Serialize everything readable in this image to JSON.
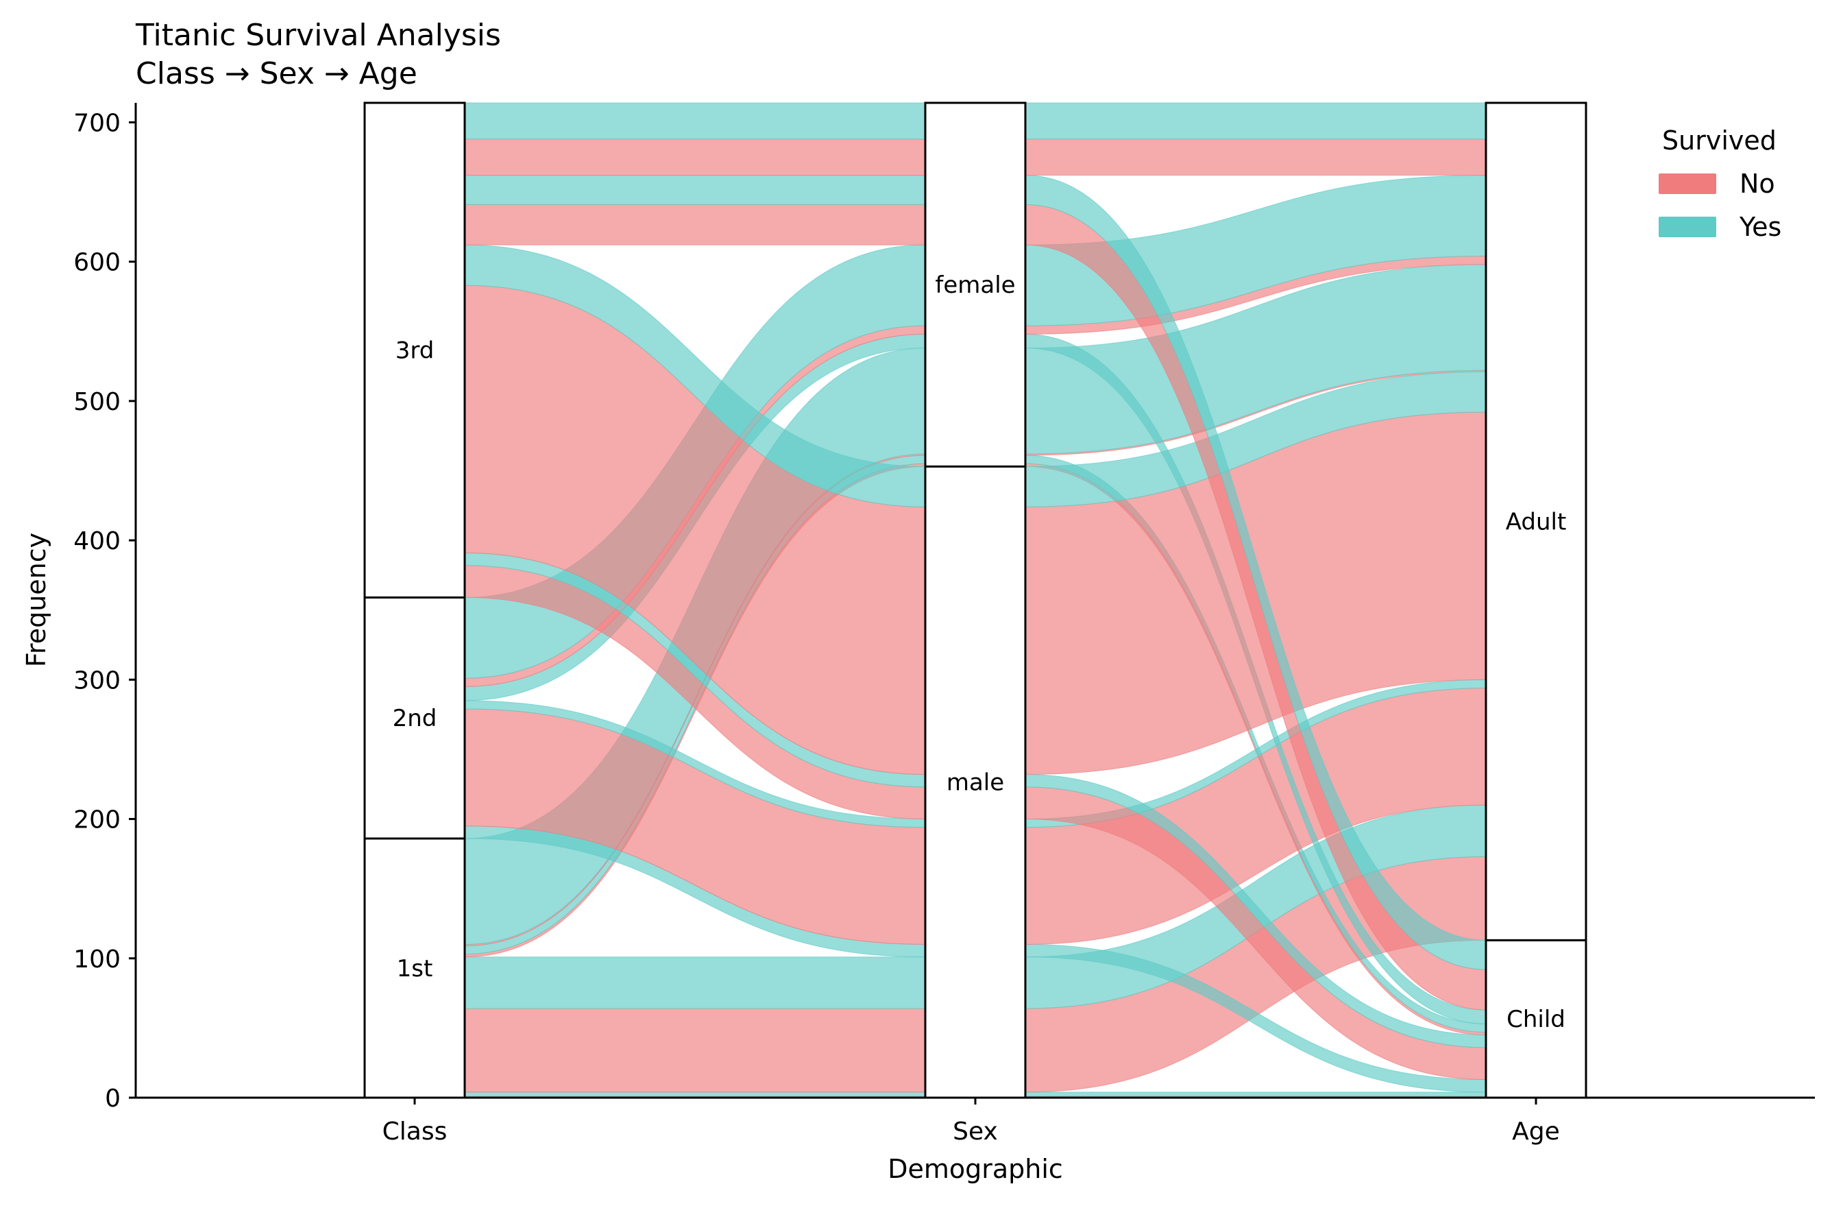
{
  "chart_data": {
    "type": "alluvial",
    "title": "Titanic Survival Analysis",
    "subtitle": "Class → Sex → Age",
    "xlabel": "Demographic",
    "ylabel": "Frequency",
    "ylim": [
      0,
      714
    ],
    "yticks": [
      "0",
      "100",
      "200",
      "300",
      "400",
      "500",
      "600",
      "700"
    ],
    "axes": [
      "Class",
      "Sex",
      "Age"
    ],
    "strata": {
      "Class": [
        {
          "label": "1st",
          "count": 186
        },
        {
          "label": "2nd",
          "count": 173
        },
        {
          "label": "3rd",
          "count": 355
        }
      ],
      "Sex": [
        {
          "label": "male",
          "count": 453
        },
        {
          "label": "female",
          "count": 261
        }
      ],
      "Age": [
        {
          "label": "Child",
          "count": 113
        },
        {
          "label": "Adult",
          "count": 601
        }
      ]
    },
    "legend": {
      "title": "Survived",
      "entries": [
        {
          "label": "No",
          "color": "#f07c7e"
        },
        {
          "label": "Yes",
          "color": "#5fcbc6"
        }
      ],
      "placement": "top-right"
    },
    "flows": [
      {
        "class": "1st",
        "sex": "male",
        "age": "Child",
        "survived": "No",
        "count": 1
      },
      {
        "class": "1st",
        "sex": "male",
        "age": "Child",
        "survived": "Yes",
        "count": 3
      },
      {
        "class": "1st",
        "sex": "male",
        "age": "Adult",
        "survived": "No",
        "count": 60
      },
      {
        "class": "1st",
        "sex": "male",
        "age": "Adult",
        "survived": "Yes",
        "count": 37
      },
      {
        "class": "1st",
        "sex": "female",
        "age": "Child",
        "survived": "No",
        "count": 2
      },
      {
        "class": "1st",
        "sex": "female",
        "age": "Child",
        "survived": "Yes",
        "count": 6
      },
      {
        "class": "1st",
        "sex": "female",
        "age": "Adult",
        "survived": "No",
        "count": 1
      },
      {
        "class": "1st",
        "sex": "female",
        "age": "Adult",
        "survived": "Yes",
        "count": 76
      },
      {
        "class": "2nd",
        "sex": "male",
        "age": "Child",
        "survived": "No",
        "count": 0
      },
      {
        "class": "2nd",
        "sex": "male",
        "age": "Child",
        "survived": "Yes",
        "count": 9
      },
      {
        "class": "2nd",
        "sex": "male",
        "age": "Adult",
        "survived": "No",
        "count": 84
      },
      {
        "class": "2nd",
        "sex": "male",
        "age": "Adult",
        "survived": "Yes",
        "count": 6
      },
      {
        "class": "2nd",
        "sex": "female",
        "age": "Child",
        "survived": "No",
        "count": 0
      },
      {
        "class": "2nd",
        "sex": "female",
        "age": "Child",
        "survived": "Yes",
        "count": 10
      },
      {
        "class": "2nd",
        "sex": "female",
        "age": "Adult",
        "survived": "No",
        "count": 6
      },
      {
        "class": "2nd",
        "sex": "female",
        "age": "Adult",
        "survived": "Yes",
        "count": 58
      },
      {
        "class": "3rd",
        "sex": "male",
        "age": "Child",
        "survived": "No",
        "count": 23
      },
      {
        "class": "3rd",
        "sex": "male",
        "age": "Child",
        "survived": "Yes",
        "count": 9
      },
      {
        "class": "3rd",
        "sex": "male",
        "age": "Adult",
        "survived": "No",
        "count": 192
      },
      {
        "class": "3rd",
        "sex": "male",
        "age": "Adult",
        "survived": "Yes",
        "count": 29
      },
      {
        "class": "3rd",
        "sex": "female",
        "age": "Child",
        "survived": "No",
        "count": 29
      },
      {
        "class": "3rd",
        "sex": "female",
        "age": "Child",
        "survived": "Yes",
        "count": 21
      },
      {
        "class": "3rd",
        "sex": "female",
        "age": "Adult",
        "survived": "No",
        "count": 26
      },
      {
        "class": "3rd",
        "sex": "female",
        "age": "Adult",
        "survived": "Yes",
        "count": 26
      }
    ]
  }
}
